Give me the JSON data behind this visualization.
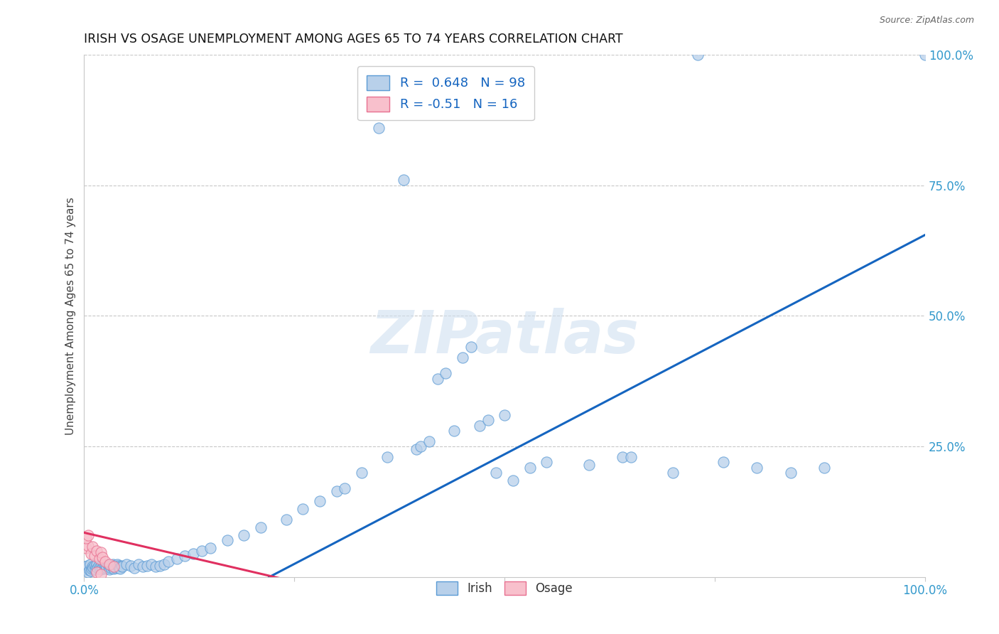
{
  "title": "IRISH VS OSAGE UNEMPLOYMENT AMONG AGES 65 TO 74 YEARS CORRELATION CHART",
  "source": "Source: ZipAtlas.com",
  "ylabel": "Unemployment Among Ages 65 to 74 years",
  "xlim": [
    0.0,
    1.0
  ],
  "ylim": [
    0.0,
    1.0
  ],
  "background_color": "#ffffff",
  "grid_color": "#c8c8c8",
  "watermark_text": "ZIPatlas",
  "watermark_color": "#d0e0f0",
  "irish_face_color": "#b8d0ea",
  "irish_edge_color": "#5b9bd5",
  "osage_face_color": "#f8c0cc",
  "osage_edge_color": "#e87090",
  "irish_R": 0.648,
  "irish_N": 98,
  "osage_R": -0.51,
  "osage_N": 16,
  "irish_line_color": "#1565c0",
  "osage_line_color": "#e03060",
  "legend_R_color": "#1565c0",
  "tick_label_color": "#3399cc",
  "ylabel_color": "#444444",
  "title_color": "#111111",
  "source_color": "#666666",
  "irish_line_x0": 0.22,
  "irish_line_x1": 1.0,
  "irish_line_y0": 0.0,
  "irish_line_y1": 0.655,
  "osage_line_x0": 0.0,
  "osage_line_x1": 0.28,
  "osage_line_y0": 0.085,
  "osage_line_y1": -0.02,
  "irish_points_x": [
    0.001,
    0.002,
    0.003,
    0.004,
    0.005,
    0.006,
    0.007,
    0.008,
    0.009,
    0.01,
    0.011,
    0.012,
    0.013,
    0.014,
    0.015,
    0.016,
    0.017,
    0.018,
    0.019,
    0.02,
    0.021,
    0.022,
    0.023,
    0.024,
    0.025,
    0.026,
    0.027,
    0.028,
    0.029,
    0.03,
    0.031,
    0.032,
    0.033,
    0.034,
    0.035,
    0.036,
    0.037,
    0.038,
    0.039,
    0.04,
    0.041,
    0.042,
    0.043,
    0.044,
    0.045,
    0.05,
    0.055,
    0.06,
    0.065,
    0.07,
    0.075,
    0.08,
    0.085,
    0.09,
    0.095,
    0.1,
    0.11,
    0.12,
    0.13,
    0.14,
    0.15,
    0.17,
    0.19,
    0.21,
    0.24,
    0.26,
    0.28,
    0.3,
    0.31,
    0.33,
    0.35,
    0.36,
    0.38,
    0.395,
    0.4,
    0.41,
    0.42,
    0.43,
    0.44,
    0.45,
    0.46,
    0.47,
    0.48,
    0.49,
    0.5,
    0.51,
    0.53,
    0.55,
    0.6,
    0.64,
    0.65,
    0.7,
    0.73,
    0.76,
    0.8,
    0.84,
    0.88,
    1.0
  ],
  "irish_points_y": [
    0.02,
    0.015,
    0.018,
    0.022,
    0.01,
    0.014,
    0.025,
    0.012,
    0.016,
    0.02,
    0.018,
    0.022,
    0.015,
    0.02,
    0.025,
    0.018,
    0.022,
    0.016,
    0.02,
    0.015,
    0.022,
    0.018,
    0.025,
    0.02,
    0.016,
    0.022,
    0.018,
    0.025,
    0.02,
    0.015,
    0.022,
    0.018,
    0.02,
    0.025,
    0.016,
    0.022,
    0.02,
    0.018,
    0.025,
    0.02,
    0.022,
    0.018,
    0.016,
    0.022,
    0.02,
    0.025,
    0.022,
    0.018,
    0.025,
    0.02,
    0.022,
    0.025,
    0.02,
    0.022,
    0.025,
    0.03,
    0.035,
    0.04,
    0.045,
    0.05,
    0.055,
    0.07,
    0.08,
    0.095,
    0.11,
    0.13,
    0.145,
    0.165,
    0.17,
    0.2,
    0.86,
    0.23,
    0.76,
    0.245,
    0.25,
    0.26,
    0.38,
    0.39,
    0.28,
    0.42,
    0.44,
    0.29,
    0.3,
    0.2,
    0.31,
    0.185,
    0.21,
    0.22,
    0.215,
    0.23,
    0.23,
    0.2,
    1.0,
    0.22,
    0.21,
    0.2,
    0.21,
    1.0
  ],
  "osage_points_x": [
    0.002,
    0.005,
    0.008,
    0.01,
    0.012,
    0.015,
    0.018,
    0.02,
    0.022,
    0.025,
    0.03,
    0.035,
    0.002,
    0.005,
    0.015,
    0.02
  ],
  "osage_points_y": [
    0.055,
    0.06,
    0.045,
    0.058,
    0.04,
    0.05,
    0.035,
    0.048,
    0.038,
    0.03,
    0.025,
    0.02,
    0.075,
    0.08,
    0.01,
    0.005
  ]
}
